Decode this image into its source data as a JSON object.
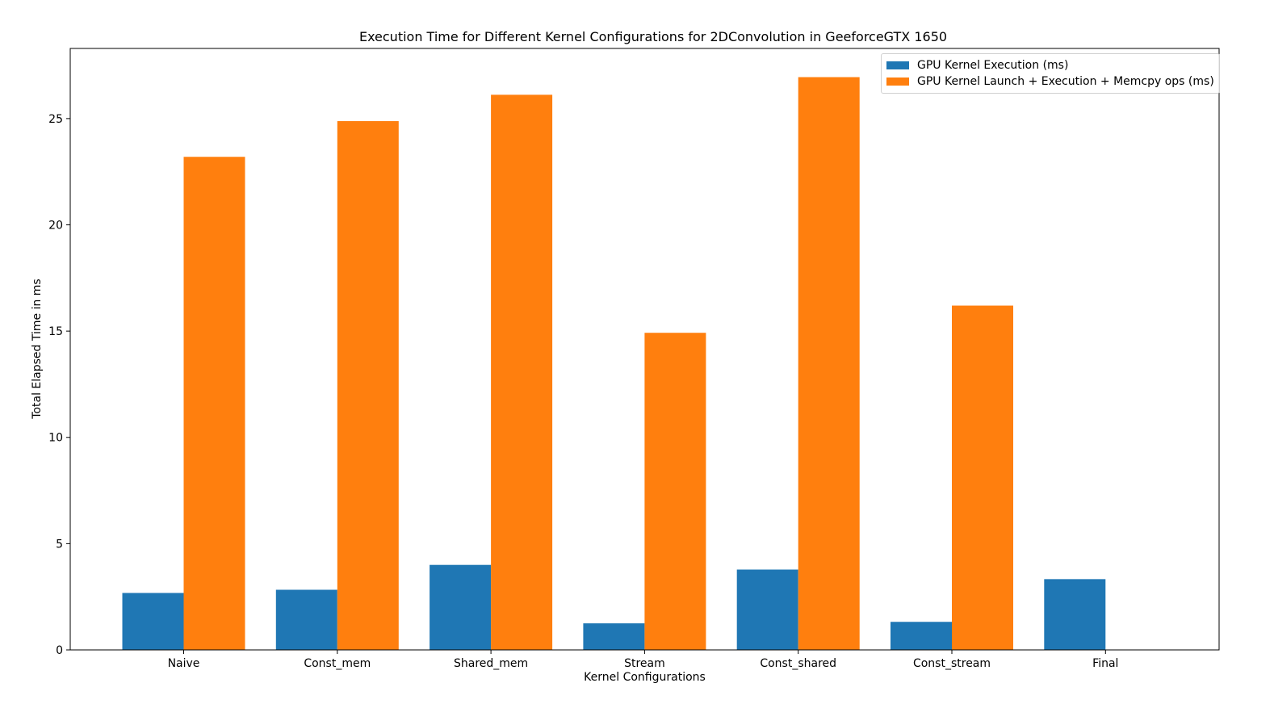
{
  "chart_data": {
    "type": "bar",
    "title": "Execution Time for Different Kernel Configurations for 2DConvolution in GeeforceGTX 1650",
    "xlabel": "Kernel Configurations",
    "ylabel": "Total Elapsed Time in ms",
    "categories": [
      "Naive",
      "Const_mem",
      "Shared_mem",
      "Stream",
      "Const_shared",
      "Const_stream",
      "Final"
    ],
    "series": [
      {
        "name": "GPU Kernel Execution (ms)",
        "color": "#1f77b4",
        "values": [
          2.68,
          2.83,
          4.0,
          1.25,
          3.78,
          1.32,
          3.33
        ]
      },
      {
        "name": "GPU Kernel Launch + Execution + Memcpy ops (ms)",
        "color": "#ff7f0e",
        "values": [
          23.2,
          24.88,
          26.12,
          14.92,
          26.95,
          16.2,
          null
        ]
      }
    ],
    "ylim": [
      0,
      28.3
    ],
    "yticks": [
      0,
      5,
      10,
      15,
      20,
      25
    ],
    "grid": false,
    "legend": "top-right"
  }
}
